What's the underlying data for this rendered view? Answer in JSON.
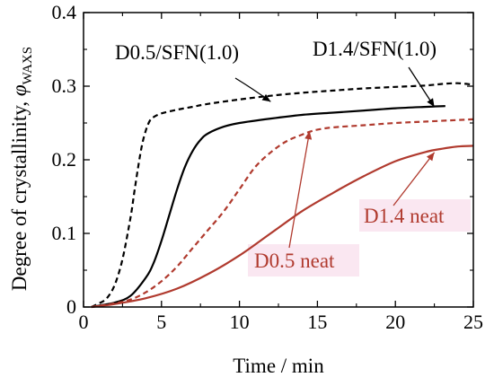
{
  "chart_data": {
    "type": "line",
    "title": "",
    "xlabel": "Time / min",
    "ylabel_main": "Degree of crystallinity, ",
    "ylabel_symbol": "φ",
    "ylabel_subscript": "WAXS",
    "xlim": [
      0,
      25
    ],
    "ylim": [
      0,
      0.4
    ],
    "xticks": [
      0,
      5,
      10,
      15,
      20,
      25
    ],
    "yticks": [
      0,
      0.1,
      0.2,
      0.3,
      0.4
    ],
    "xtick_labels": [
      "0",
      "5",
      "10",
      "15",
      "20",
      "25"
    ],
    "ytick_labels": [
      "0",
      "0.1",
      "0.2",
      "0.3",
      "0.4"
    ],
    "grid": false,
    "legend": "none",
    "series": [
      {
        "name": "D0.5/SFN(1.0)",
        "color": "#000000",
        "dash": "dashed",
        "x": [
          0.5,
          1,
          1.5,
          2,
          2.5,
          3,
          3.25,
          3.5,
          3.75,
          4,
          4.25,
          4.5,
          5,
          6,
          7,
          8,
          10,
          12,
          14,
          16,
          18,
          20,
          22,
          23,
          24,
          25
        ],
        "y": [
          0,
          0.005,
          0.012,
          0.03,
          0.065,
          0.12,
          0.155,
          0.19,
          0.22,
          0.24,
          0.253,
          0.258,
          0.263,
          0.268,
          0.272,
          0.276,
          0.282,
          0.287,
          0.291,
          0.294,
          0.297,
          0.299,
          0.301,
          0.303,
          0.304,
          0.302
        ]
      },
      {
        "name": "D1.4/SFN(1.0)",
        "color": "#000000",
        "dash": "solid",
        "x": [
          0.5,
          1,
          2,
          3,
          4,
          4.5,
          5,
          5.5,
          6,
          6.5,
          7,
          7.5,
          8,
          9,
          10,
          12,
          14,
          16,
          18,
          20,
          22,
          23.2
        ],
        "y": [
          0,
          0.002,
          0.006,
          0.015,
          0.04,
          0.06,
          0.09,
          0.125,
          0.16,
          0.19,
          0.212,
          0.227,
          0.236,
          0.245,
          0.25,
          0.256,
          0.261,
          0.264,
          0.267,
          0.27,
          0.272,
          0.273
        ]
      },
      {
        "name": "D0.5 neat",
        "color": "#b03a2e",
        "dash": "dashed",
        "x": [
          0.5,
          2,
          3,
          4,
          5,
          6,
          7,
          8,
          9,
          10,
          11,
          12,
          13,
          14,
          14.5,
          15,
          16,
          18,
          20,
          22,
          24,
          25
        ],
        "y": [
          0,
          0.005,
          0.01,
          0.02,
          0.035,
          0.055,
          0.08,
          0.105,
          0.13,
          0.16,
          0.19,
          0.21,
          0.225,
          0.234,
          0.238,
          0.241,
          0.244,
          0.247,
          0.25,
          0.252,
          0.254,
          0.255
        ]
      },
      {
        "name": "D1.4 neat",
        "color": "#b03a2e",
        "dash": "solid",
        "x": [
          0.5,
          2,
          4,
          6,
          8,
          10,
          12,
          14,
          16,
          18,
          20,
          22,
          23,
          24,
          25
        ],
        "y": [
          0,
          0.004,
          0.012,
          0.025,
          0.045,
          0.07,
          0.1,
          0.13,
          0.155,
          0.178,
          0.198,
          0.211,
          0.215,
          0.218,
          0.219
        ]
      }
    ],
    "annotations": [
      {
        "text": "D0.5/SFN(1.0)",
        "color": "#000000",
        "pointer": "curved",
        "tip": [
          12,
          0.279
        ]
      },
      {
        "text": "D1.4/SFN(1.0)",
        "color": "#000000",
        "pointer": "arrow",
        "tip": [
          22.5,
          0.272
        ]
      },
      {
        "text": "D0.5 neat",
        "color": "#b03a2e",
        "pointer": "arrow",
        "tip": [
          14.5,
          0.239
        ]
      },
      {
        "text": "D1.4 neat",
        "color": "#b03a2e",
        "pointer": "arrow",
        "tip": [
          22.5,
          0.21
        ]
      }
    ]
  }
}
